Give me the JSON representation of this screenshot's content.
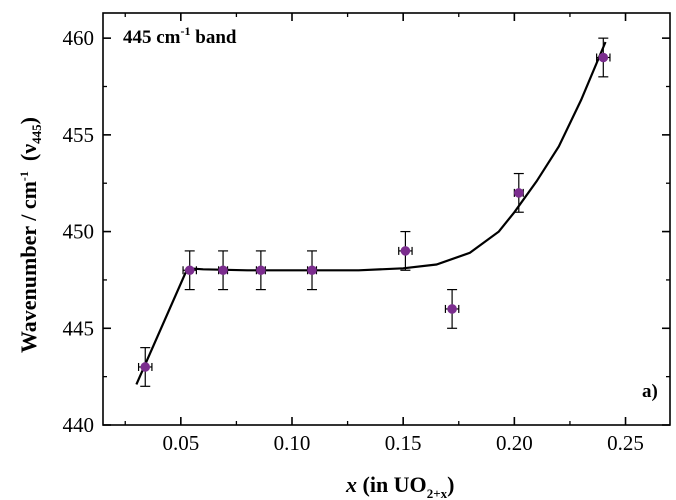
{
  "chart_data": {
    "type": "scatter",
    "annotation": {
      "main": "445 cm",
      "sup": "-1",
      "rest": " band"
    },
    "panel_label": "a)",
    "xlabel": {
      "italic": "x",
      "text": " (in UO",
      "sub": "2+x",
      "close": ")"
    },
    "ylabel": {
      "main": "Wavenumber / cm",
      "sup": "-1",
      "sym": "(ν",
      "sub": "445",
      "close": ")"
    },
    "xlim": [
      0.015,
      0.27
    ],
    "ylim": [
      440,
      461.3
    ],
    "x_ticks": [
      0.05,
      0.1,
      0.15,
      0.2,
      0.25
    ],
    "x_tick_labels": [
      "0.05",
      "0.10",
      "0.15",
      "0.20",
      "0.25"
    ],
    "x_minor_ticks": [
      0.025,
      0.075,
      0.125,
      0.175,
      0.225
    ],
    "y_ticks": [
      440,
      445,
      450,
      455,
      460
    ],
    "y_tick_labels": [
      "440",
      "445",
      "450",
      "455",
      "460"
    ],
    "y_minor_ticks": [
      442.5,
      447.5,
      452.5,
      457.5
    ],
    "points": [
      {
        "x": 0.034,
        "y": 443,
        "yerr": 1,
        "xerr": 0.003
      },
      {
        "x": 0.054,
        "y": 448,
        "yerr": 1,
        "xerr": 0.003
      },
      {
        "x": 0.069,
        "y": 448,
        "yerr": 1,
        "xerr": 0.002
      },
      {
        "x": 0.086,
        "y": 448,
        "yerr": 1,
        "xerr": 0.002
      },
      {
        "x": 0.109,
        "y": 448,
        "yerr": 1,
        "xerr": 0.002
      },
      {
        "x": 0.151,
        "y": 449,
        "yerr": 1,
        "xerr": 0.003
      },
      {
        "x": 0.172,
        "y": 446,
        "yerr": 1,
        "xerr": 0.003
      },
      {
        "x": 0.202,
        "y": 452,
        "yerr": 1,
        "xerr": 0.002
      },
      {
        "x": 0.24,
        "y": 459,
        "yerr": 1,
        "xerr": 0.003
      }
    ],
    "fit_line": {
      "x": [
        0.03,
        0.053,
        0.06,
        0.08,
        0.11,
        0.13,
        0.15,
        0.165,
        0.18,
        0.193,
        0.2,
        0.21,
        0.22,
        0.23,
        0.241
      ],
      "y": [
        442.1,
        448.1,
        448.05,
        448.0,
        448.0,
        448.0,
        448.1,
        448.3,
        448.9,
        450.0,
        451.0,
        452.6,
        454.4,
        456.8,
        459.8
      ]
    },
    "marker_color": "#7b2d8e",
    "grid": false
  }
}
